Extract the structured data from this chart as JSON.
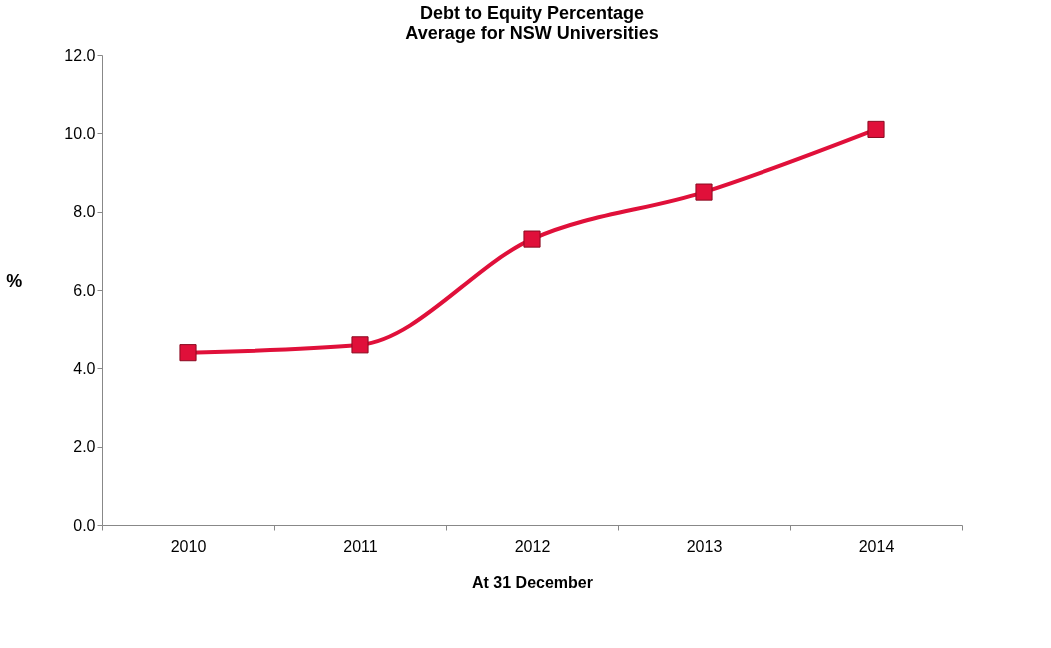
{
  "chart_data": {
    "type": "line",
    "title": [
      "Debt to Equity Percentage",
      "Average for NSW Universities"
    ],
    "xlabel": "At 31 December",
    "ylabel": "%",
    "categories": [
      "2010",
      "2011",
      "2012",
      "2013",
      "2014"
    ],
    "series": [
      {
        "color": "#e0103a",
        "values": [
          4.4,
          4.6,
          7.3,
          8.5,
          10.1
        ]
      }
    ],
    "ylim": [
      0,
      12
    ],
    "yticks": [
      {
        "value": 0,
        "label": "0.0"
      },
      {
        "value": 2,
        "label": "2.0"
      },
      {
        "value": 4,
        "label": "4.0"
      },
      {
        "value": 6,
        "label": "6.0"
      },
      {
        "value": 8,
        "label": "8.0"
      },
      {
        "value": 10,
        "label": "10.0"
      },
      {
        "value": 12,
        "label": "12.0"
      }
    ],
    "grid": false,
    "marker": "square",
    "line_style": "solid"
  }
}
